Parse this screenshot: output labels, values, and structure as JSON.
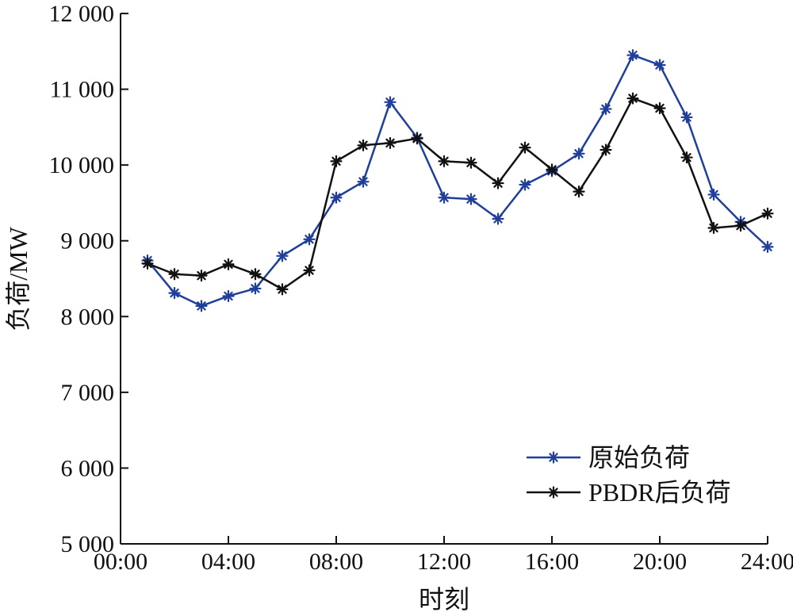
{
  "chart_data": {
    "type": "line",
    "xlabel": "时刻",
    "ylabel": "负荷/MW",
    "x": [
      1,
      2,
      3,
      4,
      5,
      6,
      7,
      8,
      9,
      10,
      11,
      12,
      13,
      14,
      15,
      16,
      17,
      18,
      19,
      20,
      21,
      22,
      23,
      24
    ],
    "xlim": [
      0,
      24
    ],
    "ylim": [
      5000,
      12000
    ],
    "x_ticks": [
      0,
      4,
      8,
      12,
      16,
      20,
      24
    ],
    "x_tick_labels": [
      "00:00",
      "04:00",
      "08:00",
      "12:00",
      "16:00",
      "20:00",
      "24:00"
    ],
    "y_ticks": [
      5000,
      6000,
      7000,
      8000,
      9000,
      10000,
      11000,
      12000
    ],
    "y_tick_labels": [
      "5 000",
      "6 000",
      "7 000",
      "8 000",
      "9 000",
      "10 000",
      "11 000",
      "12 000"
    ],
    "grid": false,
    "legend_position": "bottom-right",
    "series": [
      {
        "name": "原始负荷",
        "color": "#1f3f9a",
        "marker": "asterisk",
        "values": [
          8740,
          8310,
          8140,
          8270,
          8370,
          8800,
          9020,
          9570,
          9780,
          10830,
          10360,
          9570,
          9550,
          9290,
          9740,
          9920,
          10150,
          10740,
          11450,
          11320,
          10630,
          9610,
          9250,
          8920
        ]
      },
      {
        "name": "PBDR后负荷",
        "color": "#111111",
        "marker": "asterisk",
        "values": [
          8700,
          8560,
          8540,
          8690,
          8560,
          8360,
          8610,
          10050,
          10260,
          10290,
          10350,
          10050,
          10030,
          9760,
          10230,
          9940,
          9650,
          10200,
          10880,
          10750,
          10100,
          9170,
          9200,
          9360
        ]
      }
    ]
  }
}
